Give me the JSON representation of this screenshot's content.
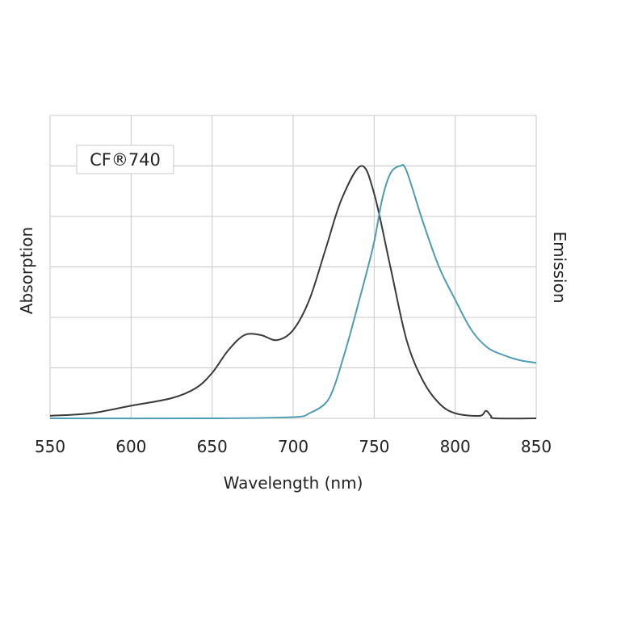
{
  "chart_data": {
    "type": "line",
    "title": "",
    "label_box": "CF®740",
    "xlabel": "Wavelength (nm)",
    "ylabel_left": "Absorption",
    "ylabel_right": "Emission",
    "xlim": [
      550,
      850
    ],
    "ylim": [
      0,
      1.2
    ],
    "xticks": [
      550,
      600,
      650,
      700,
      750,
      800,
      850
    ],
    "xtick_labels": [
      "550",
      "600",
      "650",
      "700",
      "750",
      "800",
      "850"
    ],
    "y_gridlines": 6,
    "grid": true,
    "colors": {
      "absorption": "#3a3a3a",
      "emission": "#4d9db2",
      "grid": "#c8c8c8"
    },
    "series": [
      {
        "name": "Absorption",
        "x": [
          550,
          575,
          600,
          625,
          640,
          650,
          660,
          670,
          680,
          690,
          700,
          710,
          720,
          730,
          742,
          750,
          760,
          770,
          780,
          790,
          800,
          815,
          819,
          822,
          825,
          850
        ],
        "y": [
          0.01,
          0.02,
          0.05,
          0.08,
          0.12,
          0.18,
          0.27,
          0.33,
          0.33,
          0.31,
          0.35,
          0.47,
          0.67,
          0.87,
          1.0,
          0.89,
          0.6,
          0.31,
          0.15,
          0.06,
          0.02,
          0.01,
          0.03,
          0.01,
          0.0,
          0.0
        ]
      },
      {
        "name": "Emission",
        "x": [
          550,
          650,
          700,
          710,
          720,
          725,
          730,
          735,
          740,
          745,
          750,
          755,
          760,
          766,
          770,
          780,
          790,
          800,
          810,
          820,
          830,
          840,
          850
        ],
        "y": [
          0.0,
          0.0,
          0.005,
          0.02,
          0.06,
          0.12,
          0.22,
          0.33,
          0.45,
          0.57,
          0.7,
          0.87,
          0.97,
          1.0,
          0.98,
          0.78,
          0.6,
          0.47,
          0.35,
          0.28,
          0.25,
          0.23,
          0.22
        ]
      }
    ]
  }
}
